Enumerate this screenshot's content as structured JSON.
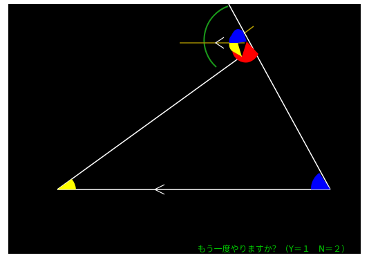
{
  "prompt": {
    "text": "もう一度やりますか？（Y＝１　N＝２）"
  },
  "colors": {
    "background": "#000000",
    "triangle_edge": "#ffffff",
    "extension_line": "#b8a000",
    "parallel_line": "#a08a00",
    "arc": "#1a9a1a",
    "angle_a": "#ffff00",
    "angle_b": "#0000ff",
    "angle_c": "#ff0000",
    "arrow": "#ffffff",
    "prompt_text": "#00cc00"
  },
  "icons": {
    "parallel_arrow_top": "arrow-left-icon",
    "parallel_arrow_base": "arrow-left-icon"
  }
}
